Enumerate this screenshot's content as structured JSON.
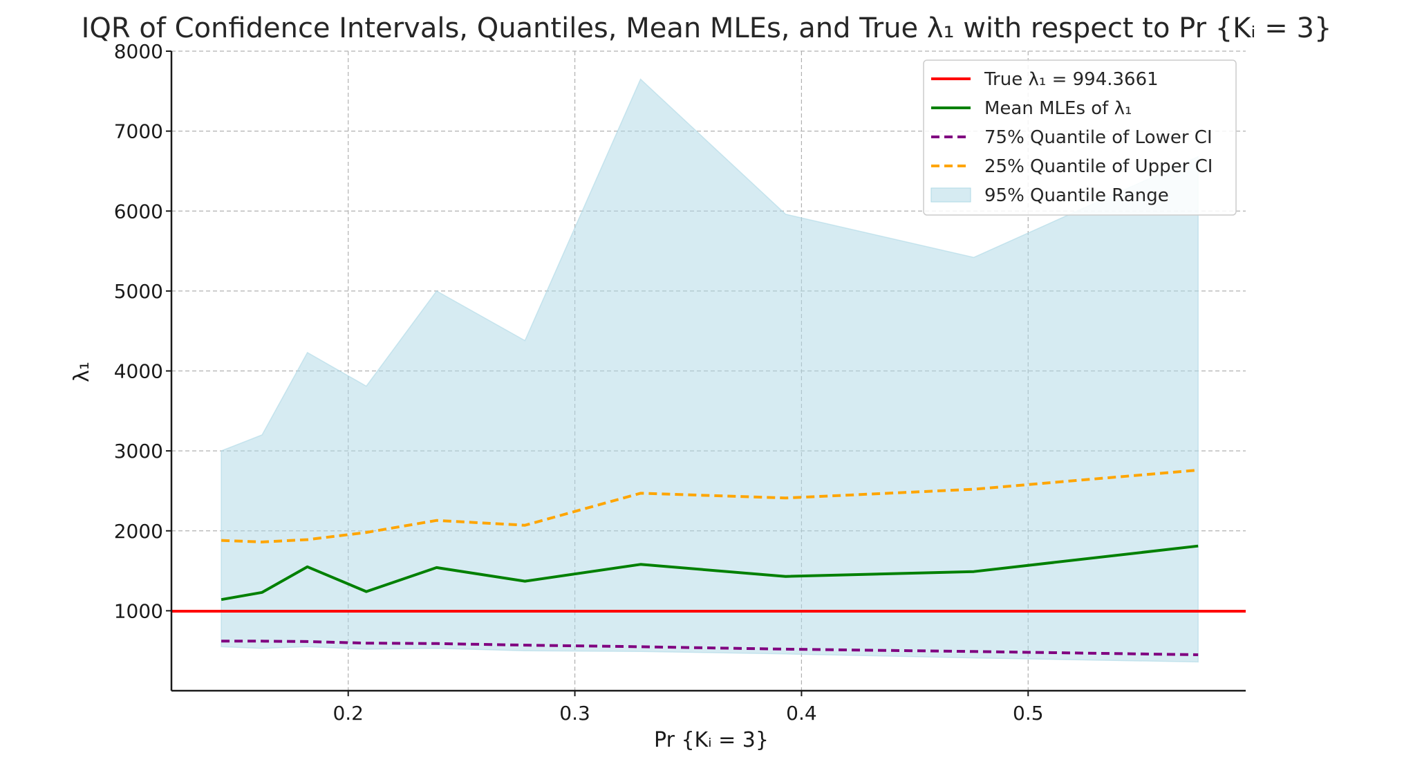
{
  "chart_data": {
    "type": "line",
    "title": "IQR of Confidence Intervals, Quantiles, Mean MLEs, and True λ₁ with respect to Pr {Kᵢ = 3}",
    "xlabel": "Pr {Kᵢ = 3}",
    "ylabel": "λ₁",
    "xlim": [
      0.122,
      0.596
    ],
    "ylim": [
      0,
      8000
    ],
    "xticks": [
      0.2,
      0.3,
      0.4,
      0.5
    ],
    "xtick_labels": [
      "0.2",
      "0.3",
      "0.4",
      "0.5"
    ],
    "yticks": [
      1000,
      2000,
      3000,
      4000,
      5000,
      6000,
      7000,
      8000
    ],
    "ytick_labels": [
      "1000",
      "2000",
      "3000",
      "4000",
      "5000",
      "6000",
      "7000",
      "8000"
    ],
    "grid": true,
    "legend_position": "top-right",
    "x": [
      0.144,
      0.162,
      0.182,
      0.208,
      0.239,
      0.278,
      0.329,
      0.393,
      0.476,
      0.575
    ],
    "series": [
      {
        "name": "True λ₁ = 994.3661",
        "kind": "hline",
        "value": 994.3661,
        "color": "#ff0000",
        "style": "solid"
      },
      {
        "name": "Mean MLEs of λ₁",
        "kind": "line",
        "values": [
          1140,
          1230,
          1550,
          1240,
          1540,
          1370,
          1580,
          1430,
          1490,
          1810
        ],
        "color": "#008000",
        "style": "solid"
      },
      {
        "name": "75% Quantile of Lower CI",
        "kind": "line",
        "values": [
          620,
          620,
          615,
          595,
          590,
          570,
          550,
          520,
          490,
          450
        ],
        "color": "#800080",
        "style": "dashed"
      },
      {
        "name": "25% Quantile of Upper CI",
        "kind": "line",
        "values": [
          1880,
          1860,
          1890,
          1980,
          2130,
          2070,
          2470,
          2410,
          2520,
          2760
        ],
        "color": "#ffa500",
        "style": "dashed"
      },
      {
        "name": "95% Quantile Range",
        "kind": "band",
        "lower": [
          550,
          530,
          550,
          520,
          530,
          500,
          490,
          460,
          410,
          360
        ],
        "upper": [
          3000,
          3200,
          4230,
          3810,
          5000,
          4380,
          7650,
          5960,
          5420,
          6680
        ],
        "color": "#add8e6",
        "opacity": 0.5
      }
    ]
  }
}
